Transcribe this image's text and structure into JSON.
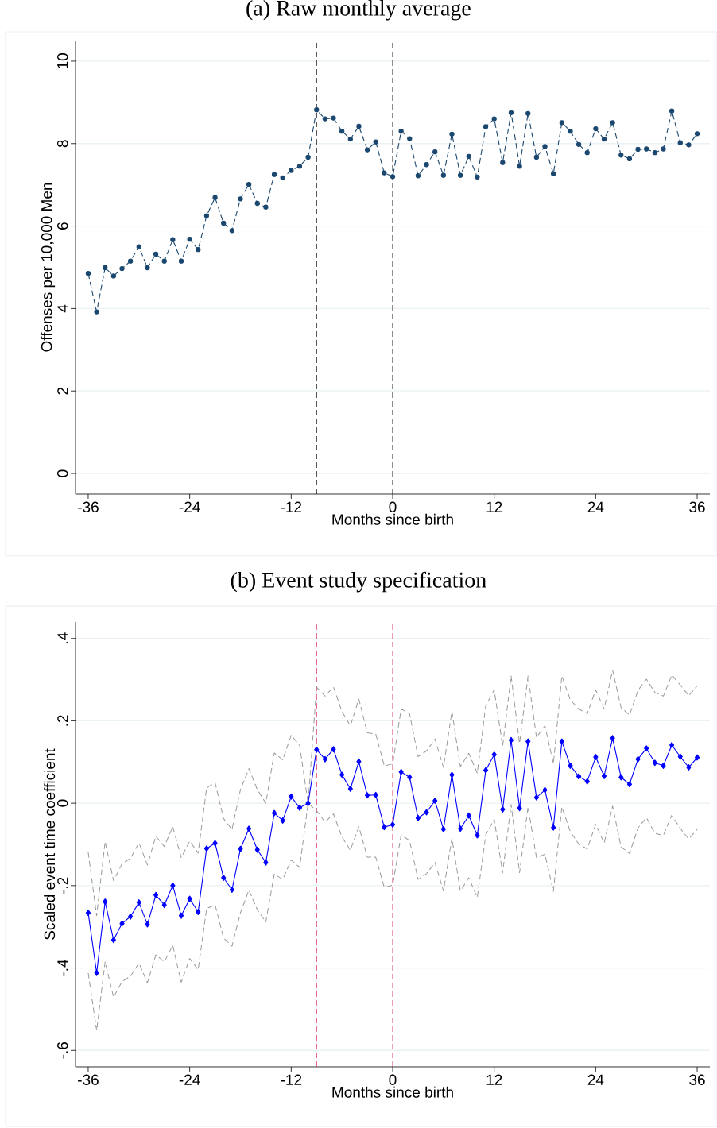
{
  "chart_data": [
    {
      "type": "line",
      "title": "(a) Raw monthly average",
      "xlabel": "Months since birth",
      "ylabel": "Offenses per 10,000 Men",
      "x": [
        -36,
        -35,
        -34,
        -33,
        -32,
        -31,
        -30,
        -29,
        -28,
        -27,
        -26,
        -25,
        -24,
        -23,
        -22,
        -21,
        -20,
        -19,
        -18,
        -17,
        -16,
        -15,
        -14,
        -13,
        -12,
        -11,
        -10,
        -9,
        -8,
        -7,
        -6,
        -5,
        -4,
        -3,
        -2,
        -1,
        0,
        1,
        2,
        3,
        4,
        5,
        6,
        7,
        8,
        9,
        10,
        11,
        12,
        13,
        14,
        15,
        16,
        17,
        18,
        19,
        20,
        21,
        22,
        23,
        24,
        25,
        26,
        27,
        28,
        29,
        30,
        31,
        32,
        33,
        34,
        35,
        36
      ],
      "series": [
        {
          "color": "#1a476f",
          "marker": "circle",
          "line_style": "dashed",
          "values": [
            4.85,
            3.92,
            4.99,
            4.79,
            4.97,
            5.15,
            5.5,
            4.99,
            5.32,
            5.15,
            5.67,
            5.15,
            5.68,
            5.43,
            6.25,
            6.69,
            6.07,
            5.89,
            6.66,
            7.01,
            6.55,
            6.46,
            7.25,
            7.17,
            7.35,
            7.45,
            7.67,
            8.82,
            8.6,
            8.62,
            8.3,
            8.11,
            8.42,
            7.85,
            8.04,
            7.29,
            7.2,
            8.3,
            8.12,
            7.22,
            7.49,
            7.8,
            7.23,
            8.23,
            7.23,
            7.69,
            7.19,
            8.41,
            8.6,
            7.54,
            8.75,
            7.45,
            8.73,
            7.67,
            7.93,
            7.27,
            8.51,
            8.3,
            7.98,
            7.78,
            8.36,
            8.11,
            8.51,
            7.72,
            7.63,
            7.86,
            7.87,
            7.78,
            7.87,
            8.79,
            8.02,
            7.97,
            8.24
          ]
        }
      ],
      "xlim": [
        -37.5,
        37.5
      ],
      "ylim": [
        -0.5,
        10.5
      ],
      "xticks": [
        -36,
        -24,
        -12,
        0,
        12,
        24,
        36
      ],
      "yticks": [
        0,
        2,
        4,
        6,
        8,
        10
      ],
      "grid": "y",
      "ref_lines": [
        {
          "axis": "x",
          "value": -9,
          "color": "#000000",
          "line_style": "dashed"
        },
        {
          "axis": "x",
          "value": 0,
          "color": "#000000",
          "line_style": "dashed"
        }
      ]
    },
    {
      "type": "line",
      "title": "(b) Event study specification",
      "xlabel": "Months since birth",
      "ylabel": "Scaled event time coefficient",
      "x": [
        -36,
        -35,
        -34,
        -33,
        -32,
        -31,
        -30,
        -29,
        -28,
        -27,
        -26,
        -25,
        -24,
        -23,
        -22,
        -21,
        -20,
        -19,
        -18,
        -17,
        -16,
        -15,
        -14,
        -13,
        -12,
        -11,
        -10,
        -9,
        -8,
        -7,
        -6,
        -5,
        -4,
        -3,
        -2,
        -1,
        0,
        1,
        2,
        3,
        4,
        5,
        6,
        7,
        8,
        9,
        10,
        11,
        12,
        13,
        14,
        15,
        16,
        17,
        18,
        19,
        20,
        21,
        22,
        23,
        24,
        25,
        26,
        27,
        28,
        29,
        30,
        31,
        32,
        33,
        34,
        35,
        36
      ],
      "series": [
        {
          "color": "#9a9a9a",
          "marker": "none",
          "line_style": "dashed",
          "values": [
            -0.119,
            -0.273,
            -0.093,
            -0.188,
            -0.147,
            -0.134,
            -0.096,
            -0.15,
            -0.08,
            -0.105,
            -0.057,
            -0.132,
            -0.092,
            -0.121,
            0.037,
            0.05,
            -0.037,
            -0.064,
            0.033,
            0.084,
            0.033,
            0.0,
            0.122,
            0.105,
            0.165,
            0.14,
            0,
            0.282,
            0.26,
            0.282,
            0.223,
            0.188,
            0.253,
            0.171,
            0.168,
            0.091,
            0.095,
            0.229,
            0.217,
            0.113,
            0.127,
            0.156,
            0.087,
            0.223,
            0.089,
            0.121,
            0.073,
            0.237,
            0.275,
            0.139,
            0.309,
            0.145,
            0.309,
            0.16,
            0.188,
            0.096,
            0.309,
            0.251,
            0.229,
            0.217,
            0.275,
            0.229,
            0.323,
            0.232,
            0.214,
            0.274,
            0.301,
            0.269,
            0.26,
            0.311,
            0.287,
            0.261,
            0.285
          ]
        },
        {
          "color": "#9a9a9a",
          "marker": "none",
          "line_style": "dashed",
          "values": [
            -0.412,
            -0.552,
            -0.385,
            -0.471,
            -0.433,
            -0.42,
            -0.388,
            -0.436,
            -0.368,
            -0.385,
            -0.345,
            -0.435,
            -0.377,
            -0.404,
            -0.256,
            -0.246,
            -0.327,
            -0.347,
            -0.266,
            -0.211,
            -0.259,
            -0.288,
            -0.172,
            -0.185,
            -0.138,
            -0.156,
            0,
            -0.018,
            -0.046,
            -0.026,
            -0.082,
            -0.114,
            -0.057,
            -0.131,
            -0.131,
            -0.204,
            -0.199,
            -0.077,
            -0.091,
            -0.185,
            -0.171,
            -0.144,
            -0.213,
            -0.085,
            -0.213,
            -0.181,
            -0.229,
            -0.077,
            -0.039,
            -0.169,
            -0.003,
            -0.169,
            -0.009,
            -0.132,
            -0.124,
            -0.214,
            -0.009,
            -0.069,
            -0.099,
            -0.111,
            -0.051,
            -0.097,
            -0.007,
            -0.106,
            -0.122,
            -0.06,
            -0.035,
            -0.073,
            -0.078,
            -0.029,
            -0.061,
            -0.087,
            -0.063
          ]
        },
        {
          "color": "#0000ff",
          "marker": "diamond",
          "line_style": "solid",
          "values": [
            -0.266,
            -0.412,
            -0.239,
            -0.332,
            -0.292,
            -0.275,
            -0.241,
            -0.294,
            -0.223,
            -0.247,
            -0.2,
            -0.273,
            -0.232,
            -0.264,
            -0.11,
            -0.097,
            -0.181,
            -0.21,
            -0.111,
            -0.062,
            -0.113,
            -0.144,
            -0.024,
            -0.042,
            0.016,
            -0.011,
            0,
            0.13,
            0.107,
            0.131,
            0.069,
            0.035,
            0.101,
            0.019,
            0.02,
            -0.058,
            -0.052,
            0.076,
            0.063,
            -0.036,
            -0.022,
            0.006,
            -0.063,
            0.069,
            -0.062,
            -0.03,
            -0.078,
            0.08,
            0.118,
            -0.015,
            0.153,
            -0.012,
            0.15,
            0.014,
            0.032,
            -0.059,
            0.15,
            0.091,
            0.065,
            0.053,
            0.112,
            0.066,
            0.158,
            0.063,
            0.046,
            0.107,
            0.133,
            0.098,
            0.091,
            0.141,
            0.113,
            0.087,
            0.111
          ]
        }
      ],
      "xlim": [
        -37.5,
        37.5
      ],
      "ylim": [
        -0.64,
        0.44
      ],
      "xticks": [
        -36,
        -24,
        -12,
        0,
        12,
        24,
        36
      ],
      "yticks": [
        {
          "value": -0.6,
          "label": "-.6"
        },
        {
          "value": -0.4,
          "label": "-.4"
        },
        {
          "value": -0.2,
          "label": "-.2"
        },
        0,
        {
          "value": 0.2,
          "label": ".2"
        },
        {
          "value": 0.4,
          "label": ".4"
        }
      ],
      "grid": "y",
      "ref_lines": [
        {
          "axis": "x",
          "value": -9,
          "color": "#d7244f",
          "line_style": "dashed"
        },
        {
          "axis": "x",
          "value": 0,
          "color": "#d7244f",
          "line_style": "dashed"
        }
      ]
    }
  ]
}
